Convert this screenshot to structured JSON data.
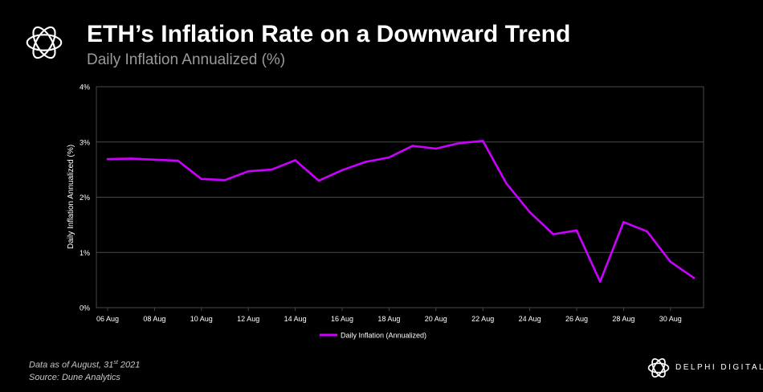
{
  "header": {
    "title": "ETH’s Inflation Rate on a Downward Trend",
    "subtitle": "Daily Inflation Annualized (%)",
    "logo_icon": "circular-knot-logo-icon"
  },
  "footer": {
    "note_prefix": "Data as of August, 31",
    "note_sup": "st",
    "note_suffix": " 2021",
    "source": "Source: Dune Analytics"
  },
  "brand": {
    "name": "DELPHI DIGITAL"
  },
  "colors": {
    "background": "#000000",
    "line": "#cc00ff",
    "grid": "#4a4a4a",
    "axis_text": "#ffffff"
  },
  "chart_data": {
    "type": "line",
    "ylabel": "Daily Inflation Annualized (%)",
    "xlabel": "",
    "ylim": [
      0,
      4
    ],
    "yticks": [
      "0%",
      "1%",
      "2%",
      "3%",
      "4%"
    ],
    "grid": true,
    "legend_position": "bottom-center",
    "x_tick_labels": [
      "06 Aug",
      "08 Aug",
      "10 Aug",
      "12 Aug",
      "14 Aug",
      "16 Aug",
      "18 Aug",
      "20 Aug",
      "22 Aug",
      "24 Aug",
      "26 Aug",
      "28 Aug",
      "30 Aug"
    ],
    "x": [
      "06 Aug",
      "07 Aug",
      "08 Aug",
      "09 Aug",
      "10 Aug",
      "11 Aug",
      "12 Aug",
      "13 Aug",
      "14 Aug",
      "15 Aug",
      "16 Aug",
      "17 Aug",
      "18 Aug",
      "19 Aug",
      "20 Aug",
      "21 Aug",
      "22 Aug",
      "23 Aug",
      "24 Aug",
      "25 Aug",
      "26 Aug",
      "27 Aug",
      "28 Aug",
      "29 Aug",
      "30 Aug",
      "31 Aug"
    ],
    "series": [
      {
        "name": "Daily Inflation (Annualized)",
        "color": "#cc00ff",
        "values": [
          2.69,
          2.7,
          2.68,
          2.66,
          2.33,
          2.31,
          2.47,
          2.5,
          2.67,
          2.3,
          2.49,
          2.64,
          2.72,
          2.93,
          2.88,
          2.98,
          3.02,
          2.25,
          1.73,
          1.33,
          1.4,
          0.47,
          1.55,
          1.38,
          0.83,
          0.54
        ]
      }
    ]
  }
}
